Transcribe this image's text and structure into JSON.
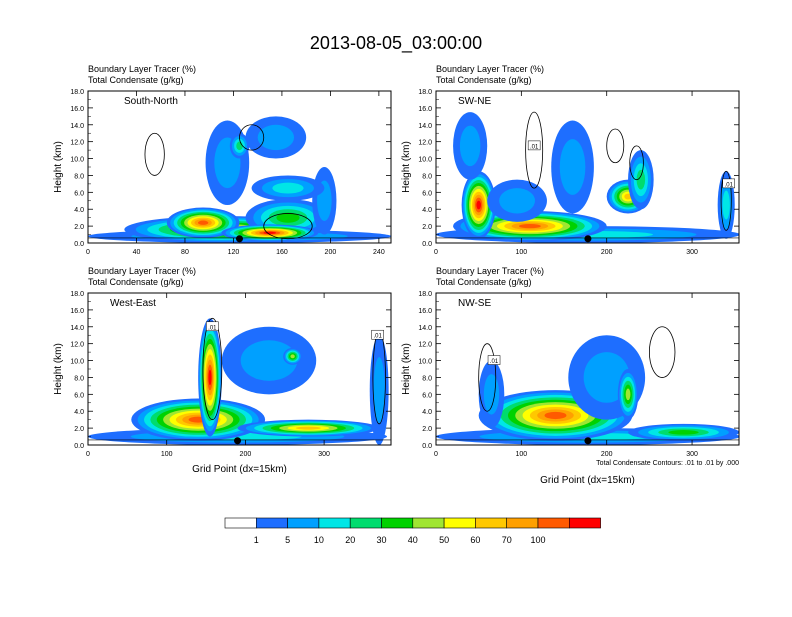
{
  "title": "2013-08-05_03:00:00",
  "colors": {
    "levels": [
      "#ffffff",
      "#1e6eff",
      "#00a0ff",
      "#00e6e6",
      "#00dc6e",
      "#00d200",
      "#a0e632",
      "#ffff00",
      "#ffc800",
      "#ffa000",
      "#ff5a00",
      "#ff0000"
    ],
    "contour": "#000000"
  },
  "colorbar": {
    "labels": [
      "1",
      "5",
      "10",
      "20",
      "30",
      "40",
      "50",
      "60",
      "70",
      "100"
    ]
  },
  "chart_data": [
    {
      "type": "heatmap",
      "panel_label": "South-North",
      "subtitle_line1": "Boundary Layer Tracer   (%)",
      "subtitle_line2": "Total Condensate   (g/kg)",
      "ylabel": "Height (km)",
      "xlabel": "",
      "ylim": [
        0,
        18
      ],
      "xlim": [
        0,
        250
      ],
      "yticks": [
        "0.0",
        "2.0",
        "4.0",
        "6.0",
        "8.0",
        "10.0",
        "12.0",
        "14.0",
        "16.0",
        "18.0"
      ],
      "xticks": [
        "0",
        "40",
        "80",
        "120",
        "160",
        "200",
        "240"
      ],
      "xtick_values": [
        0,
        40,
        80,
        120,
        160,
        200,
        240
      ],
      "marker_x": 125,
      "blobs": [
        {
          "x": 125,
          "y": 0.8,
          "rx": 125,
          "ry": 0.8,
          "level": 3
        },
        {
          "x": 110,
          "y": 1.6,
          "rx": 80,
          "ry": 1.6,
          "level": 8
        },
        {
          "x": 95,
          "y": 2.4,
          "rx": 30,
          "ry": 1.8,
          "level": 10
        },
        {
          "x": 165,
          "y": 3.0,
          "rx": 35,
          "ry": 2.2,
          "level": 5
        },
        {
          "x": 150,
          "y": 1.2,
          "rx": 40,
          "ry": 1.0,
          "level": 11
        },
        {
          "x": 115,
          "y": 9.5,
          "rx": 18,
          "ry": 5.0,
          "level": 2
        },
        {
          "x": 155,
          "y": 12.5,
          "rx": 25,
          "ry": 2.5,
          "level": 2
        },
        {
          "x": 125,
          "y": 11.5,
          "rx": 8,
          "ry": 1.5,
          "level": 4
        },
        {
          "x": 195,
          "y": 5.0,
          "rx": 10,
          "ry": 4.0,
          "level": 2
        },
        {
          "x": 165,
          "y": 6.5,
          "rx": 30,
          "ry": 1.5,
          "level": 3
        }
      ],
      "contours": [
        {
          "x": 135,
          "y": 12.5,
          "rx": 10,
          "ry": 1.5
        },
        {
          "x": 55,
          "y": 10.5,
          "rx": 8,
          "ry": 2.5
        },
        {
          "x": 165,
          "y": 2.0,
          "rx": 20,
          "ry": 1.5
        }
      ],
      "contour_labels": []
    },
    {
      "type": "heatmap",
      "panel_label": "SW-NE",
      "subtitle_line1": "Boundary Layer Tracer   (%)",
      "subtitle_line2": "Total Condensate   (g/kg)",
      "ylabel": "Height (km)",
      "xlabel": "",
      "ylim": [
        0,
        18
      ],
      "xlim": [
        0,
        355
      ],
      "yticks": [
        "0.0",
        "2.0",
        "4.0",
        "6.0",
        "8.0",
        "10.0",
        "12.0",
        "14.0",
        "16.0",
        "18.0"
      ],
      "xticks": [
        "0",
        "100",
        "200",
        "300"
      ],
      "xtick_values": [
        0,
        100,
        200,
        300
      ],
      "marker_x": 178,
      "blobs": [
        {
          "x": 178,
          "y": 1.0,
          "rx": 178,
          "ry": 1.0,
          "level": 3
        },
        {
          "x": 110,
          "y": 2.0,
          "rx": 90,
          "ry": 1.8,
          "level": 10
        },
        {
          "x": 50,
          "y": 4.5,
          "rx": 20,
          "ry": 4.0,
          "level": 11
        },
        {
          "x": 40,
          "y": 11.5,
          "rx": 20,
          "ry": 4.0,
          "level": 2
        },
        {
          "x": 95,
          "y": 5.0,
          "rx": 35,
          "ry": 2.5,
          "level": 2
        },
        {
          "x": 160,
          "y": 9.0,
          "rx": 25,
          "ry": 5.5,
          "level": 2
        },
        {
          "x": 225,
          "y": 5.5,
          "rx": 25,
          "ry": 2.0,
          "level": 8
        },
        {
          "x": 240,
          "y": 7.5,
          "rx": 15,
          "ry": 3.5,
          "level": 4
        },
        {
          "x": 340,
          "y": 4.5,
          "rx": 10,
          "ry": 4.0,
          "level": 3
        }
      ],
      "contours": [
        {
          "x": 115,
          "y": 11.0,
          "rx": 10,
          "ry": 4.5
        },
        {
          "x": 210,
          "y": 11.5,
          "rx": 10,
          "ry": 2.0
        },
        {
          "x": 235,
          "y": 9.5,
          "rx": 8,
          "ry": 2.0
        },
        {
          "x": 340,
          "y": 5.0,
          "rx": 6,
          "ry": 3.5
        }
      ],
      "contour_labels": [
        {
          "x": 115,
          "y": 11.5,
          "text": ".01"
        },
        {
          "x": 343,
          "y": 7.0,
          "text": ".01"
        }
      ]
    },
    {
      "type": "heatmap",
      "panel_label": "West-East",
      "subtitle_line1": "Boundary Layer Tracer   (%)",
      "subtitle_line2": "Total Condensate   (g/kg)",
      "ylabel": "Height (km)",
      "xlabel": "Grid Point (dx=15km)",
      "ylim": [
        0,
        18
      ],
      "xlim": [
        0,
        385
      ],
      "yticks": [
        "0.0",
        "2.0",
        "4.0",
        "6.0",
        "8.0",
        "10.0",
        "12.0",
        "14.0",
        "16.0",
        "18.0"
      ],
      "xticks": [
        "0",
        "100",
        "200",
        "300"
      ],
      "xtick_values": [
        0,
        100,
        200,
        300
      ],
      "marker_x": 190,
      "blobs": [
        {
          "x": 190,
          "y": 1.0,
          "rx": 190,
          "ry": 1.0,
          "level": 3
        },
        {
          "x": 140,
          "y": 3.0,
          "rx": 85,
          "ry": 2.5,
          "level": 10
        },
        {
          "x": 155,
          "y": 8.0,
          "rx": 15,
          "ry": 7.0,
          "level": 11
        },
        {
          "x": 230,
          "y": 10.0,
          "rx": 60,
          "ry": 4.0,
          "level": 2
        },
        {
          "x": 260,
          "y": 10.5,
          "rx": 12,
          "ry": 1.0,
          "level": 6
        },
        {
          "x": 280,
          "y": 2.0,
          "rx": 90,
          "ry": 1.0,
          "level": 8
        },
        {
          "x": 370,
          "y": 6.5,
          "rx": 12,
          "ry": 6.5,
          "level": 2
        }
      ],
      "contours": [
        {
          "x": 158,
          "y": 9.0,
          "rx": 12,
          "ry": 6.0
        },
        {
          "x": 370,
          "y": 8.0,
          "rx": 8,
          "ry": 5.5
        }
      ],
      "contour_labels": [
        {
          "x": 158,
          "y": 14.0,
          "text": ".01"
        },
        {
          "x": 368,
          "y": 13.0,
          "text": ".01"
        }
      ]
    },
    {
      "type": "heatmap",
      "panel_label": "NW-SE",
      "subtitle_line1": "Boundary Layer Tracer   (%)",
      "subtitle_line2": "Total Condensate   (g/kg)",
      "ylabel": "Height (km)",
      "xlabel": "Grid Point (dx=15km)",
      "ylim": [
        0,
        18
      ],
      "xlim": [
        0,
        355
      ],
      "yticks": [
        "0.0",
        "2.0",
        "4.0",
        "6.0",
        "8.0",
        "10.0",
        "12.0",
        "14.0",
        "16.0",
        "18.0"
      ],
      "xticks": [
        "0",
        "100",
        "200",
        "300"
      ],
      "xtick_values": [
        0,
        100,
        200,
        300
      ],
      "marker_x": 178,
      "footnote": "Total Condensate Contours: .01 to .01 by .000",
      "blobs": [
        {
          "x": 178,
          "y": 1.0,
          "rx": 178,
          "ry": 1.0,
          "level": 3
        },
        {
          "x": 140,
          "y": 3.5,
          "rx": 90,
          "ry": 3.0,
          "level": 10
        },
        {
          "x": 200,
          "y": 8.0,
          "rx": 45,
          "ry": 5.0,
          "level": 2
        },
        {
          "x": 225,
          "y": 6.0,
          "rx": 12,
          "ry": 3.0,
          "level": 6
        },
        {
          "x": 65,
          "y": 6.0,
          "rx": 15,
          "ry": 4.0,
          "level": 2
        },
        {
          "x": 290,
          "y": 1.5,
          "rx": 65,
          "ry": 1.0,
          "level": 5
        }
      ],
      "contours": [
        {
          "x": 60,
          "y": 8.0,
          "rx": 10,
          "ry": 4.0
        },
        {
          "x": 265,
          "y": 11.0,
          "rx": 15,
          "ry": 3.0
        }
      ],
      "contour_labels": [
        {
          "x": 68,
          "y": 10.0,
          "text": ".01"
        }
      ]
    }
  ]
}
